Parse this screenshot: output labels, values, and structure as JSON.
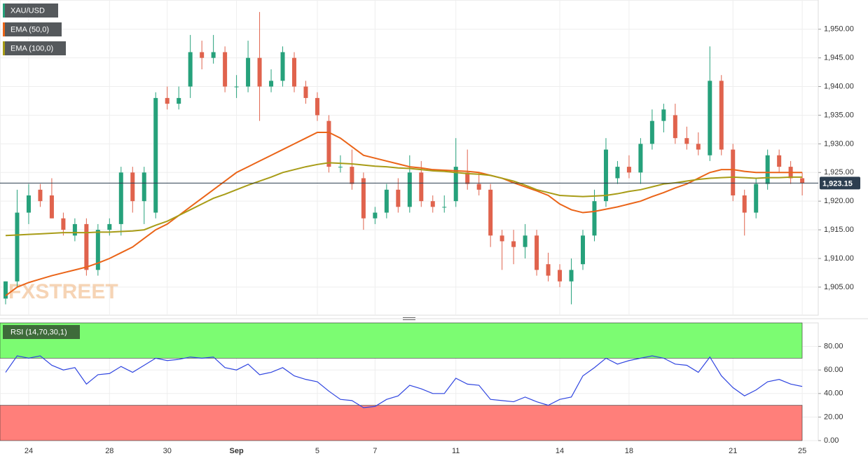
{
  "chart_data": [
    {
      "type": "candlestick",
      "title": "XAU/USD",
      "categories": [
        null,
        null,
        "24",
        null,
        null,
        null,
        null,
        null,
        null,
        "28",
        null,
        null,
        null,
        null,
        "30",
        null,
        null,
        null,
        null,
        null,
        "Sep",
        null,
        null,
        null,
        null,
        null,
        null,
        "5",
        null,
        null,
        null,
        null,
        "7",
        null,
        null,
        null,
        null,
        null,
        null,
        "11",
        null,
        null,
        null,
        null,
        null,
        null,
        null,
        null,
        "14",
        null,
        null,
        null,
        null,
        null,
        "18",
        null,
        null,
        null,
        null,
        null,
        null,
        null,
        null,
        "21",
        null,
        null,
        null,
        null,
        null,
        "25"
      ],
      "candles": [
        [
          1903,
          1906,
          1902,
          1906
        ],
        [
          1906,
          1922,
          1905,
          1918
        ],
        [
          1918,
          1923,
          1916,
          1921
        ],
        [
          1922,
          1923,
          1919,
          1920
        ],
        [
          1921,
          1924,
          1917,
          1917
        ],
        [
          1917,
          1918,
          1914,
          1915
        ],
        [
          1914,
          1917,
          1913,
          1916
        ],
        [
          1916,
          1917,
          1907,
          1908
        ],
        [
          1908,
          1916,
          1907,
          1915
        ],
        [
          1915,
          1917,
          1914,
          1916
        ],
        [
          1916,
          1926,
          1914,
          1925
        ],
        [
          1925,
          1926,
          1918,
          1920
        ],
        [
          1920,
          1926,
          1916,
          1925
        ],
        [
          1918,
          1939,
          1917,
          1938
        ],
        [
          1938,
          1940,
          1936,
          1937
        ],
        [
          1937,
          1940,
          1936,
          1938
        ],
        [
          1940,
          1949,
          1938,
          1946
        ],
        [
          1946,
          1948,
          1943,
          1945
        ],
        [
          1945,
          1949,
          1944,
          1946
        ],
        [
          1946,
          1947,
          1939,
          1940
        ],
        [
          1940,
          1942,
          1938,
          1940
        ],
        [
          1940,
          1948,
          1939,
          1945
        ],
        [
          1945,
          1953,
          1934,
          1940
        ],
        [
          1940,
          1943,
          1939,
          1941
        ],
        [
          1941,
          1947,
          1940,
          1946
        ],
        [
          1945,
          1946,
          1939,
          1940
        ],
        [
          1940,
          1941,
          1937,
          1938
        ],
        [
          1938,
          1939,
          1934,
          1935
        ],
        [
          1934,
          1935,
          1925,
          1926
        ],
        [
          1926,
          1928,
          1925,
          1926
        ],
        [
          1926,
          1929,
          1922,
          1923
        ],
        [
          1924,
          1925,
          1915,
          1917
        ],
        [
          1917,
          1919,
          1916,
          1918
        ],
        [
          1918,
          1923,
          1917,
          1922
        ],
        [
          1922,
          1924,
          1918,
          1919
        ],
        [
          1919,
          1928,
          1918,
          1925
        ],
        [
          1925,
          1927,
          1919,
          1920
        ],
        [
          1920,
          1921,
          1918,
          1919
        ],
        [
          1919,
          1921,
          1918,
          1919
        ],
        [
          1920,
          1931,
          1919,
          1926
        ],
        [
          1925,
          1929,
          1922,
          1923
        ],
        [
          1923,
          1925,
          1921,
          1922
        ],
        [
          1922,
          1923,
          1912,
          1914
        ],
        [
          1914,
          1915,
          1908,
          1913
        ],
        [
          1913,
          1915,
          1909,
          1912
        ],
        [
          1912,
          1916,
          1910,
          1914
        ],
        [
          1914,
          1915,
          1907,
          1908
        ],
        [
          1909,
          1911,
          1906,
          1907
        ],
        [
          1908,
          1909,
          1905,
          1906
        ],
        [
          1906,
          1910,
          1902,
          1908
        ],
        [
          1909,
          1915,
          1908,
          1914
        ],
        [
          1914,
          1922,
          1913,
          1920
        ],
        [
          1920,
          1931,
          1919,
          1929
        ],
        [
          1924,
          1927,
          1923,
          1926
        ],
        [
          1926,
          1928,
          1924,
          1925
        ],
        [
          1925,
          1931,
          1923,
          1930
        ],
        [
          1930,
          1936,
          1929,
          1934
        ],
        [
          1934,
          1937,
          1932,
          1936
        ],
        [
          1935,
          1937,
          1930,
          1931
        ],
        [
          1931,
          1933,
          1929,
          1930
        ],
        [
          1930,
          1932,
          1928,
          1929
        ],
        [
          1928,
          1947,
          1927,
          1941
        ],
        [
          1941,
          1942,
          1928,
          1929
        ],
        [
          1929,
          1930,
          1920,
          1921
        ],
        [
          1921,
          1922,
          1914,
          1918
        ],
        [
          1918,
          1924,
          1917,
          1923
        ],
        [
          1923,
          1929,
          1922,
          1928
        ],
        [
          1928,
          1929,
          1925,
          1926
        ],
        [
          1926,
          1927,
          1923,
          1924
        ],
        [
          1924,
          1925,
          1921,
          1923.15
        ]
      ],
      "up_color": "#26a17b",
      "down_color": "#e0634d",
      "series": [
        {
          "name": "EMA (50,0)",
          "color": "#ea6418",
          "values": [
            1903.5,
            1905,
            1905.8,
            1906.4,
            1907,
            1907.5,
            1908,
            1908.5,
            1909.2,
            1910,
            1911,
            1912,
            1913.5,
            1915,
            1916,
            1917.5,
            1919,
            1920.5,
            1922,
            1923.5,
            1925,
            1926,
            1927,
            1928,
            1929,
            1930,
            1931,
            1932,
            1932,
            1931,
            1929.5,
            1928,
            1927.5,
            1927,
            1926.5,
            1926,
            1925.8,
            1925.5,
            1925.4,
            1925.3,
            1925.2,
            1925,
            1924.5,
            1924,
            1923.2,
            1922.5,
            1921.8,
            1921,
            1919.5,
            1918.5,
            1918,
            1918.2,
            1918.6,
            1919,
            1919.5,
            1920,
            1920.8,
            1921.5,
            1922.3,
            1923,
            1924,
            1925,
            1925.5,
            1925.5,
            1925.2,
            1925,
            1925,
            1925,
            1925,
            1925
          ]
        },
        {
          "name": "EMA (100,0)",
          "color": "#a89c17",
          "values": [
            1914,
            1914.1,
            1914.2,
            1914.3,
            1914.4,
            1914.5,
            1914.5,
            1914.5,
            1914.6,
            1914.6,
            1914.7,
            1914.8,
            1915,
            1915.8,
            1916.5,
            1917.5,
            1918.5,
            1919.5,
            1920.5,
            1921.2,
            1922,
            1922.8,
            1923.5,
            1924.2,
            1925,
            1925.5,
            1926,
            1926.4,
            1926.7,
            1926.6,
            1926.5,
            1926.3,
            1926.1,
            1926,
            1925.8,
            1925.7,
            1925.5,
            1925.3,
            1925.2,
            1925,
            1924.8,
            1924.7,
            1924.5,
            1924,
            1923.5,
            1922.8,
            1922,
            1921.5,
            1921,
            1920.9,
            1920.8,
            1920.9,
            1921,
            1921.3,
            1921.7,
            1922,
            1922.5,
            1923,
            1923.2,
            1923.5,
            1923.8,
            1924,
            1924.1,
            1924.2,
            1924.1,
            1924,
            1924.1,
            1924.1,
            1924.2,
            1924.2
          ]
        }
      ],
      "last": {
        "value": 1923.15,
        "label": "1,923.15"
      },
      "watermark": "FXSTREET",
      "ylim": [
        1900.1,
        1955.1
      ],
      "yticks": [
        {
          "value": 1905,
          "label": "1,905.00"
        },
        {
          "value": 1910,
          "label": "1,910.00"
        },
        {
          "value": 1915,
          "label": "1,915.00"
        },
        {
          "value": 1920,
          "label": "1,920.00"
        },
        {
          "value": 1925,
          "label": "1,925.00"
        },
        {
          "value": 1930,
          "label": "1,930.00"
        },
        {
          "value": 1935,
          "label": "1,935.00"
        },
        {
          "value": 1940,
          "label": "1,940.00"
        },
        {
          "value": 1945,
          "label": "1,945.00"
        },
        {
          "value": 1950,
          "label": "1,950.00"
        }
      ],
      "grid": true
    },
    {
      "type": "line",
      "title": "RSI (14,70,30,1)",
      "color": "#2f45e0",
      "values": [
        58,
        72,
        70,
        72,
        64,
        60,
        62,
        48,
        56,
        57,
        63,
        58,
        64,
        70,
        68,
        69,
        71,
        70,
        71,
        62,
        60,
        65,
        56,
        58,
        62,
        55,
        52,
        50,
        42,
        35,
        34,
        28,
        29,
        35,
        38,
        47,
        44,
        40,
        40,
        53,
        48,
        47,
        35,
        34,
        33,
        37,
        33,
        30,
        35,
        37,
        55,
        62,
        70,
        65,
        68,
        70,
        72,
        70,
        65,
        64,
        58,
        71,
        55,
        45,
        38,
        43,
        50,
        52,
        48,
        46
      ],
      "upper": 70,
      "lower": 30,
      "ylim": [
        0,
        100
      ],
      "yticks": [
        {
          "value": 0,
          "label": "0.00"
        },
        {
          "value": 20,
          "label": "20.00"
        },
        {
          "value": 40,
          "label": "40.00"
        },
        {
          "value": 60,
          "label": "60.00"
        },
        {
          "value": 80,
          "label": "80.00"
        }
      ],
      "grid": true
    }
  ]
}
